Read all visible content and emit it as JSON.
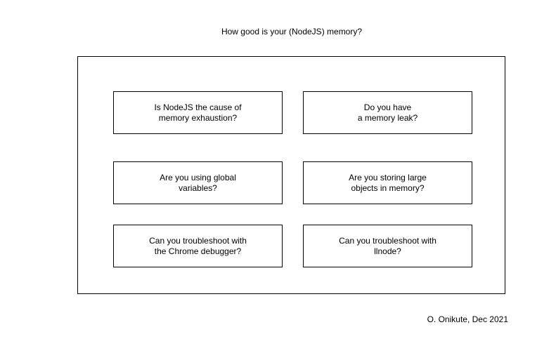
{
  "title": "How good is your (NodeJS) memory?",
  "questions": [
    {
      "text": "Is NodeJS the cause of\nmemory exhaustion?"
    },
    {
      "text": "Do you have\na memory leak?"
    },
    {
      "text": "Are you using global\nvariables?"
    },
    {
      "text": "Are you storing large\nobjects in memory?"
    },
    {
      "text": "Can you troubleshoot with\nthe Chrome debugger?"
    },
    {
      "text": "Can you troubleshoot with\nllnode?"
    }
  ],
  "credit": "O. Onikute, Dec 2021"
}
